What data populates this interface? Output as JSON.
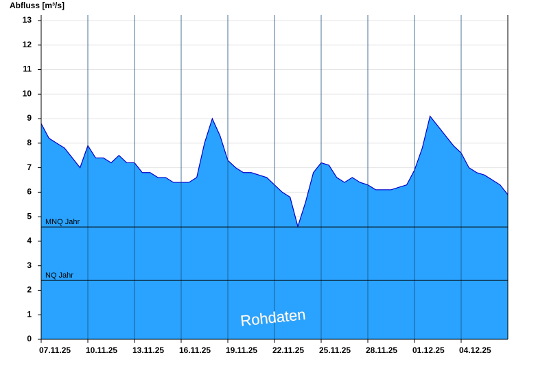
{
  "chart_data": {
    "type": "area",
    "y_label": "Abfluss [m³/s]",
    "annotation": "Rohdaten",
    "x": [
      0,
      0.5,
      1,
      1.5,
      2,
      2.5,
      3,
      3.5,
      4,
      4.5,
      5,
      5.5,
      6,
      6.5,
      7,
      7.5,
      8,
      8.5,
      9,
      9.5,
      10,
      10.5,
      11,
      11.5,
      12,
      12.5,
      13,
      13.5,
      14,
      14.5,
      15,
      15.5,
      16,
      16.5,
      17,
      17.5,
      18,
      18.5,
      19,
      19.5,
      20,
      20.5,
      21,
      21.5,
      22,
      22.5,
      23,
      23.5,
      24,
      24.5,
      25,
      25.5,
      26,
      26.5,
      27,
      27.5,
      28,
      28.5,
      29,
      29.5,
      30
    ],
    "series": [
      {
        "name": "Abfluss",
        "color": "#29a3ff",
        "line_color": "#0000cc",
        "values": [
          8.8,
          8.2,
          8.0,
          7.8,
          7.4,
          7.0,
          7.9,
          7.4,
          7.4,
          7.2,
          7.5,
          7.2,
          7.2,
          6.8,
          6.8,
          6.6,
          6.6,
          6.4,
          6.4,
          6.4,
          6.6,
          8.0,
          9.0,
          8.3,
          7.3,
          7.0,
          6.8,
          6.8,
          6.7,
          6.6,
          6.3,
          6.0,
          5.8,
          4.6,
          5.6,
          6.8,
          7.2,
          7.1,
          6.6,
          6.4,
          6.6,
          6.4,
          6.3,
          6.1,
          6.1,
          6.1,
          6.2,
          6.3,
          6.9,
          7.8,
          9.1,
          8.7,
          8.3,
          7.9,
          7.6,
          7.0,
          6.8,
          6.7,
          6.5,
          6.3,
          5.9
        ]
      }
    ],
    "reference_lines": [
      {
        "label": "MNQ Jahr",
        "value": 4.58
      },
      {
        "label": "NQ Jahr",
        "value": 2.4
      }
    ],
    "xlim": [
      0,
      30
    ],
    "xticks": [
      {
        "value": 0,
        "label": "07.11.25"
      },
      {
        "value": 3,
        "label": "10.11.25"
      },
      {
        "value": 6,
        "label": "13.11.25"
      },
      {
        "value": 9,
        "label": "16.11.25"
      },
      {
        "value": 12,
        "label": "19.11.25"
      },
      {
        "value": 15,
        "label": "22.11.25"
      },
      {
        "value": 18,
        "label": "25.11.25"
      },
      {
        "value": 21,
        "label": "28.11.25"
      },
      {
        "value": 24,
        "label": "01.12.25"
      },
      {
        "value": 27,
        "label": "04.12.25"
      }
    ],
    "ylim": [
      0,
      13
    ],
    "yticks": [
      0,
      1,
      2,
      3,
      4,
      5,
      6,
      7,
      8,
      9,
      10,
      11,
      12,
      13
    ],
    "grid": true
  }
}
